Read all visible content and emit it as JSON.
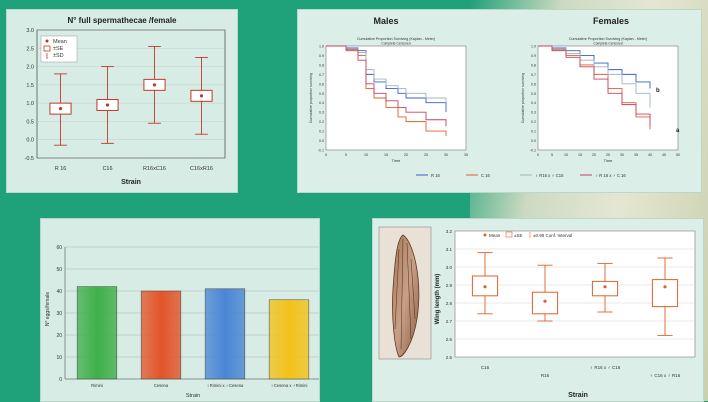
{
  "chart_data": [
    {
      "type": "box",
      "title": "N° full spermathecae /female",
      "xlabel": "Strain",
      "ylabel": "",
      "ylim": [
        0.0,
        3.0
      ],
      "yticks": [
        "3.0",
        "2.5",
        "2.0",
        "1.5",
        "1.0",
        "0.5",
        "0.0",
        "-0.5"
      ],
      "legend": [
        "Mean",
        "±SE",
        "±SD"
      ],
      "categories": [
        "R 16",
        "C16",
        "R16xC16",
        "C16xR16"
      ],
      "boxes": [
        {
          "mean": 0.85,
          "se_low": 0.7,
          "se_high": 1.0,
          "sd_low": -0.15,
          "sd_high": 1.8
        },
        {
          "mean": 0.95,
          "se_low": 0.8,
          "se_high": 1.1,
          "sd_low": -0.1,
          "sd_high": 2.0
        },
        {
          "mean": 1.5,
          "se_low": 1.35,
          "se_high": 1.65,
          "sd_low": 0.45,
          "sd_high": 2.55
        },
        {
          "mean": 1.2,
          "se_low": 1.05,
          "se_high": 1.35,
          "sd_low": 0.15,
          "sd_high": 2.25
        }
      ],
      "color": "#c0392b"
    },
    {
      "type": "line",
      "title": "Males",
      "subtitle": "Cumulative Proportion Surviving (Kaplan - Meier)",
      "subtitle2": "Complete     Censored",
      "xlabel": "Time",
      "ylabel": "Cumulative proportion surviving",
      "xlim": [
        0,
        35
      ],
      "ylim": [
        -0.1,
        1.0
      ],
      "xticks": [
        "0",
        "5",
        "10",
        "15",
        "20",
        "25",
        "30",
        "35"
      ],
      "yticks": [
        "1.0",
        "0.9",
        "0.8",
        "0.7",
        "0.6",
        "0.5",
        "0.4",
        "0.3",
        "0.2",
        "0.1",
        "0.0",
        "-0.1"
      ],
      "series": [
        {
          "name": "R 16",
          "color": "#3a5fcd",
          "x": [
            0,
            5,
            8,
            10,
            12,
            15,
            18,
            20,
            25,
            30
          ],
          "y": [
            1.0,
            0.98,
            0.95,
            0.7,
            0.62,
            0.55,
            0.5,
            0.45,
            0.4,
            0.3
          ]
        },
        {
          "name": "C 16",
          "color": "#e0602a",
          "x": [
            0,
            5,
            8,
            10,
            12,
            15,
            18,
            20,
            25,
            30
          ],
          "y": [
            1.0,
            0.95,
            0.9,
            0.55,
            0.45,
            0.35,
            0.25,
            0.2,
            0.1,
            0.05
          ]
        },
        {
          "name": "♀ R16 x ♂ C16",
          "color": "#9ab8c0",
          "x": [
            0,
            5,
            8,
            10,
            12,
            15,
            18,
            20,
            25,
            30
          ],
          "y": [
            1.0,
            0.97,
            0.93,
            0.75,
            0.65,
            0.58,
            0.55,
            0.5,
            0.45,
            0.4
          ]
        },
        {
          "name": "♀ R 16 x ♂ C 16",
          "color": "#c94060",
          "x": [
            0,
            5,
            8,
            10,
            12,
            15,
            18,
            20,
            25,
            30
          ],
          "y": [
            1.0,
            0.96,
            0.85,
            0.6,
            0.5,
            0.42,
            0.35,
            0.3,
            0.22,
            0.15
          ]
        }
      ]
    },
    {
      "type": "line",
      "title": "Females",
      "subtitle": "Cumulative Proportion Surviving (Kaplan - Meier)",
      "subtitle2": "Complete     Censored",
      "xlabel": "Time",
      "ylabel": "Cumulative proportion surviving",
      "xlim": [
        0,
        50
      ],
      "ylim": [
        -0.1,
        1.0
      ],
      "xticks": [
        "0",
        "5",
        "10",
        "15",
        "20",
        "25",
        "30",
        "35",
        "40",
        "45",
        "50"
      ],
      "yticks": [
        "1.0",
        "0.9",
        "0.8",
        "0.7",
        "0.6",
        "0.5",
        "0.4",
        "0.3",
        "0.2",
        "0.1",
        "0.0",
        "-0.1"
      ],
      "annotations": [
        "b",
        "a"
      ],
      "series": [
        {
          "name": "R 16",
          "color": "#3a5fcd",
          "x": [
            0,
            5,
            10,
            15,
            20,
            25,
            30,
            35,
            40
          ],
          "y": [
            1.0,
            0.98,
            0.95,
            0.9,
            0.82,
            0.75,
            0.7,
            0.62,
            0.55
          ]
        },
        {
          "name": "C 16",
          "color": "#e0602a",
          "x": [
            0,
            5,
            10,
            15,
            20,
            25,
            30,
            35,
            40
          ],
          "y": [
            1.0,
            0.96,
            0.9,
            0.8,
            0.7,
            0.55,
            0.4,
            0.25,
            0.12
          ]
        },
        {
          "name": "♀ R16 x ♂ C16",
          "color": "#9ab8c0",
          "x": [
            0,
            5,
            10,
            15,
            20,
            25,
            30,
            35,
            40
          ],
          "y": [
            1.0,
            0.97,
            0.92,
            0.85,
            0.78,
            0.7,
            0.6,
            0.5,
            0.35
          ]
        },
        {
          "name": "♀ R 16 x ♂ C 16",
          "color": "#c94060",
          "x": [
            0,
            5,
            10,
            15,
            20,
            25,
            30,
            35,
            40
          ],
          "y": [
            1.0,
            0.95,
            0.88,
            0.78,
            0.65,
            0.5,
            0.38,
            0.28,
            0.15
          ]
        }
      ]
    },
    {
      "type": "bar",
      "title": "",
      "xlabel": "Strain",
      "ylabel": "N° eggs/female",
      "ylim": [
        0,
        60
      ],
      "yticks": [
        "60",
        "50",
        "40",
        "30",
        "20",
        "10",
        "0"
      ],
      "categories": [
        "Rimini",
        "Cesena",
        "♀Rimini x ♂Cesena",
        "♀Cesena x ♂Rimini"
      ],
      "values": [
        42,
        40,
        41,
        36
      ],
      "colors": [
        "#3fb04a",
        "#e2552a",
        "#4a86d4",
        "#f2c21a"
      ]
    },
    {
      "type": "box",
      "title": "",
      "xlabel": "Strain",
      "ylabel": "Wing length (mm)",
      "ylim": [
        2.5,
        3.2
      ],
      "yticks": [
        "3.2",
        "3.1",
        "3.0",
        "2.9",
        "2.8",
        "2.7",
        "2.6",
        "2.5"
      ],
      "legend": [
        "Mean",
        "±SE",
        "±0.95 Conf. Interval"
      ],
      "categories": [
        "C16",
        "R16",
        "♀ R16 x ♂ C16",
        "♀ C16 x ♂ R16"
      ],
      "boxes": [
        {
          "mean": 2.89,
          "se_low": 2.84,
          "se_high": 2.95,
          "sd_low": 2.74,
          "sd_high": 3.08
        },
        {
          "mean": 2.81,
          "se_low": 2.74,
          "se_high": 2.86,
          "sd_low": 2.7,
          "sd_high": 3.01
        },
        {
          "mean": 2.89,
          "se_low": 2.84,
          "se_high": 2.92,
          "sd_low": 2.75,
          "sd_high": 3.02
        },
        {
          "mean": 2.89,
          "se_low": 2.78,
          "se_high": 2.93,
          "sd_low": 2.62,
          "sd_high": 3.05
        }
      ],
      "color": "#e0602a"
    }
  ]
}
